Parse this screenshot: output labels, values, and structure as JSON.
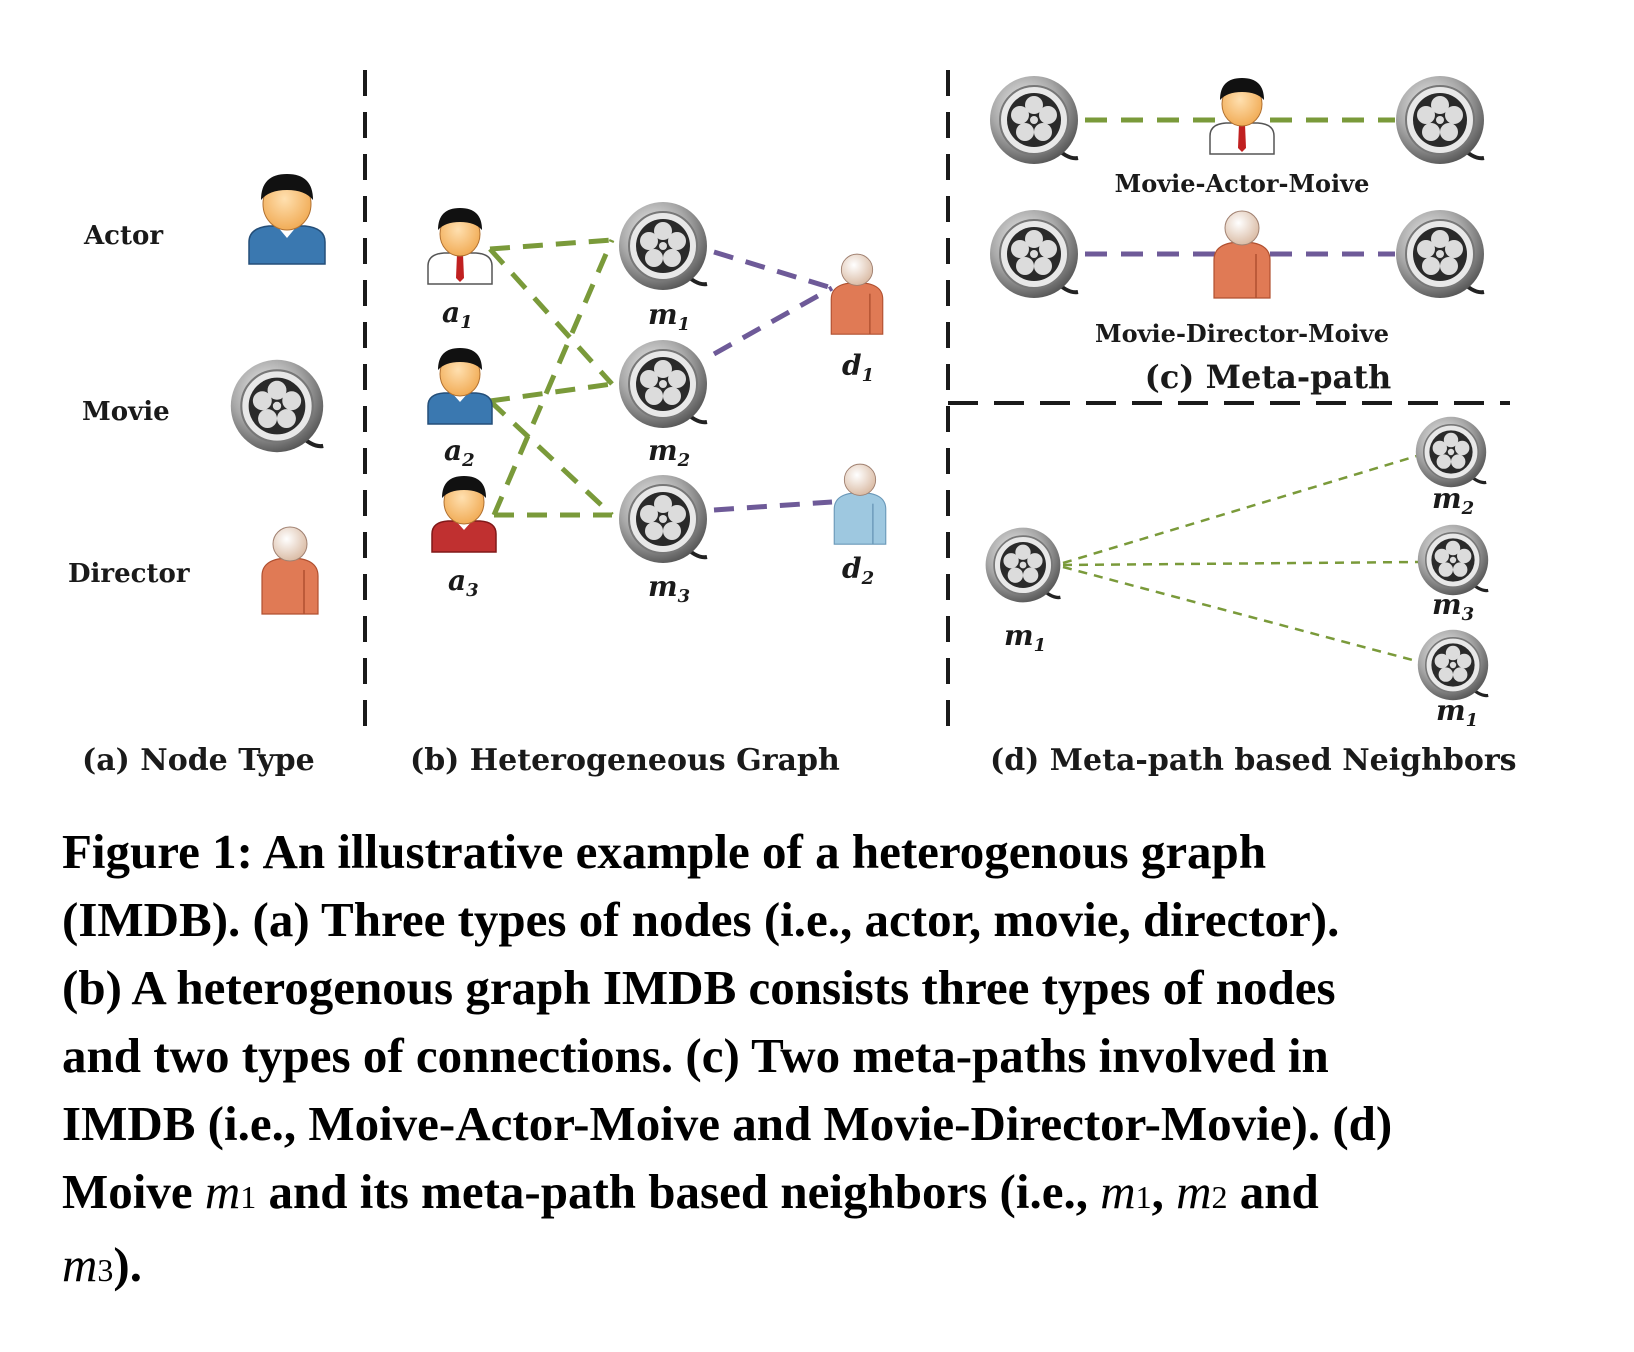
{
  "panels": {
    "a": {
      "title": "(a) Node Type",
      "types": [
        "Actor",
        "Movie",
        "Director"
      ]
    },
    "b": {
      "title": "(b) Heterogeneous Graph",
      "nodes": {
        "a1": {
          "base": "a",
          "sub": "1"
        },
        "a2": {
          "base": "a",
          "sub": "2"
        },
        "a3": {
          "base": "a",
          "sub": "3"
        },
        "m1": {
          "base": "m",
          "sub": "1"
        },
        "m2": {
          "base": "m",
          "sub": "2"
        },
        "m3": {
          "base": "m",
          "sub": "3"
        },
        "d1": {
          "base": "d",
          "sub": "1"
        },
        "d2": {
          "base": "d",
          "sub": "2"
        }
      },
      "edges": [
        {
          "from": "a1",
          "to": "m1",
          "kind": "actor"
        },
        {
          "from": "a1",
          "to": "m2",
          "kind": "actor"
        },
        {
          "from": "a2",
          "to": "m2",
          "kind": "actor"
        },
        {
          "from": "a2",
          "to": "m3",
          "kind": "actor"
        },
        {
          "from": "a3",
          "to": "m1",
          "kind": "actor"
        },
        {
          "from": "a3",
          "to": "m3",
          "kind": "actor"
        },
        {
          "from": "m1",
          "to": "d1",
          "kind": "director"
        },
        {
          "from": "m2",
          "to": "d1",
          "kind": "director"
        },
        {
          "from": "m3",
          "to": "d2",
          "kind": "director"
        }
      ]
    },
    "c": {
      "title": "(c) Meta-path",
      "paths": [
        "Movie-Actor-Moive",
        "Movie-Director-Moive"
      ]
    },
    "d": {
      "title": "(d) Meta-path based Neighbors",
      "center": {
        "base": "m",
        "sub": "1"
      },
      "neighbors": [
        {
          "base": "m",
          "sub": "2"
        },
        {
          "base": "m",
          "sub": "3"
        },
        {
          "base": "m",
          "sub": "1"
        }
      ]
    }
  },
  "colors": {
    "actor_edge": "#7a9a3a",
    "director_edge": "#6e5a98",
    "divider": "#1a1a1a",
    "actor_shirt_blue": "#3a78b0",
    "actor_shirt_red": "#c03030",
    "director_orange": "#e07a55",
    "director_blue": "#9ec8e0"
  },
  "icons": {
    "actor": "person-icon",
    "movie": "film-reel-icon",
    "director": "director-icon"
  },
  "caption": {
    "line1": "Figure 1: An illustrative example of a heterogenous graph",
    "line2": "(IMDB). (a) Three types of nodes (i.e., actor, movie, director).",
    "line3": "(b) A heterogenous graph IMDB consists three types of nodes",
    "line4": "and two types of connections. (c) Two meta-paths involved in",
    "line5": "IMDB (i.e., Moive-Actor-Moive and Movie-Director-Movie). (d)",
    "line6_pre": "Moive",
    "line6_m1": "1",
    "line6_mid": "and its meta-path based neighbors (i.e.,",
    "line6_n1": "1",
    "line6_n2": "2",
    "line6_and": "and",
    "line7_n3": "3",
    "line7_end": ")."
  }
}
